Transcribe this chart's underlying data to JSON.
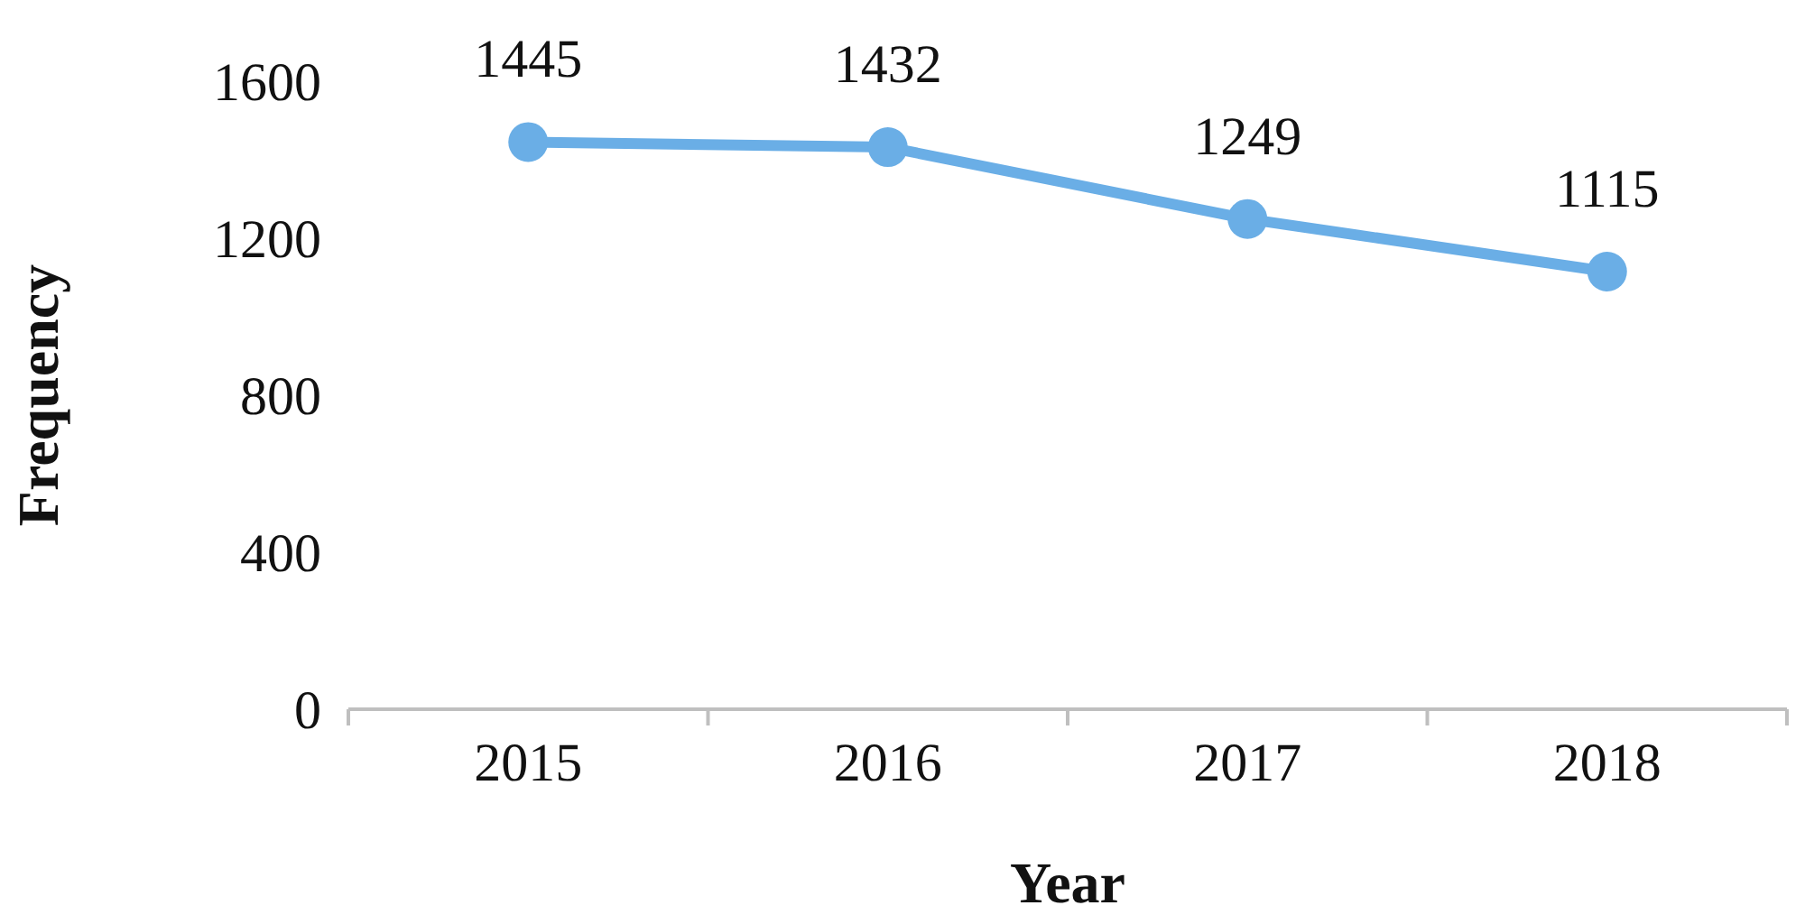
{
  "chart_data": {
    "type": "line",
    "xlabel": "Year",
    "ylabel": "Frequency",
    "categories": [
      "2015",
      "2016",
      "2017",
      "2018"
    ],
    "series": [
      {
        "color": "#6aaee6",
        "values": [
          1445,
          1432,
          1249,
          1115
        ]
      }
    ],
    "ylim": [
      0,
      1600
    ],
    "yticks": [
      0,
      400,
      800,
      1200,
      1600
    ],
    "data_labels": true,
    "marker": "circle",
    "line_style": "solid"
  }
}
